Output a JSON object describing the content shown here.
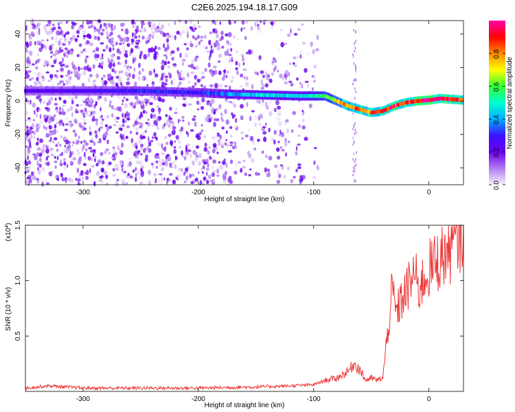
{
  "title": "C2E6.2025.194.18.17.G09",
  "chart_data": [
    {
      "type": "heatmap",
      "xlabel": "Height of straight line (km)",
      "ylabel": "Frequency (Hz)",
      "xlim": [
        -350,
        30
      ],
      "ylim": [
        -50,
        48
      ],
      "xticks": [
        -300,
        -200,
        -100,
        0
      ],
      "xtick_labels": [
        "-300",
        "-200",
        "-100",
        "0"
      ],
      "yticks": [
        -40,
        -20,
        0,
        20,
        40
      ],
      "ytick_labels": [
        "-40",
        "-20",
        "0",
        "20",
        "40"
      ],
      "colorbar": {
        "label": "Normalized spectral amplitude",
        "ticks": [
          0.0,
          0.2,
          0.4,
          0.6,
          0.8
        ],
        "tick_labels": [
          "0.0",
          "0.2",
          "0.4",
          "0.6",
          "0.8"
        ],
        "colormap": [
          "#f5f0fb",
          "#b07cf0",
          "#6a00ee",
          "#3a12ff",
          "#00b0ff",
          "#00ffd0",
          "#33ff33",
          "#ffff00",
          "#ff8800",
          "#ff0000",
          "#ff00aa"
        ]
      },
      "ridge": {
        "x": [
          -350,
          -300,
          -250,
          -200,
          -170,
          -140,
          -110,
          -90,
          -80,
          -70,
          -60,
          -50,
          -40,
          -30,
          -20,
          -10,
          0,
          10,
          20,
          30
        ],
        "frequency": [
          6,
          6,
          6,
          5,
          4,
          3.5,
          3,
          3,
          0,
          -3,
          -5,
          -7,
          -6,
          -3,
          -1,
          0,
          0.5,
          1.5,
          1,
          0.5
        ],
        "amplitude": [
          0.22,
          0.25,
          0.3,
          0.3,
          0.4,
          0.45,
          0.45,
          0.55,
          0.7,
          0.8,
          0.85,
          0.85,
          0.85,
          0.9,
          0.9,
          0.95,
          0.95,
          0.95,
          0.95,
          0.9
        ]
      },
      "noise_extent_x": [
        -350,
        -95
      ]
    },
    {
      "type": "line",
      "xlabel": "Height of straight line (km)",
      "ylabel": "SNR (10 * v/v)",
      "y_multiplier": "(x10",
      "y_multiplier_exp": "4",
      "y_multiplier_close": ")",
      "xlim": [
        -350,
        30
      ],
      "ylim": [
        0,
        1.5
      ],
      "xticks": [
        -300,
        -200,
        -100,
        0
      ],
      "xtick_labels": [
        "-300",
        "-200",
        "-100",
        "0"
      ],
      "yticks": [
        0.5,
        1.0,
        1.5
      ],
      "ytick_labels": [
        "0.5",
        "1.0",
        "1.5"
      ],
      "color": "#ee3333",
      "x": [
        -350,
        -330,
        -300,
        -250,
        -200,
        -150,
        -120,
        -100,
        -90,
        -80,
        -70,
        -65,
        -60,
        -55,
        -50,
        -45,
        -40,
        -35,
        -32,
        -28,
        -25,
        -20,
        -15,
        -12,
        -10,
        -5,
        0,
        5,
        10,
        15,
        20,
        25,
        30
      ],
      "y": [
        0.03,
        0.05,
        0.03,
        0.03,
        0.03,
        0.04,
        0.05,
        0.06,
        0.1,
        0.12,
        0.18,
        0.25,
        0.2,
        0.1,
        0.12,
        0.1,
        0.12,
        0.6,
        0.9,
        0.7,
        0.8,
        0.9,
        1.0,
        1.1,
        0.9,
        1.0,
        1.1,
        1.15,
        1.2,
        1.25,
        1.3,
        1.4,
        1.45
      ]
    }
  ]
}
